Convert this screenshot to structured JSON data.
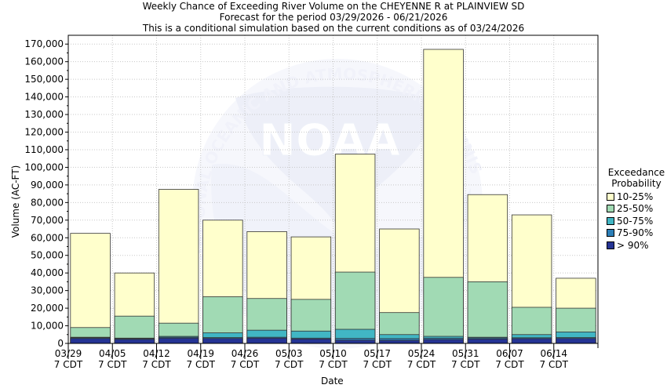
{
  "title": {
    "line1": "Weekly Chance of Exceeding River Volume on the CHEYENNE R at PLAINVIEW SD",
    "line2": "Forecast for the period 03/29/2026 - 06/21/2026",
    "line3": "This is a conditional simulation based on the current conditions as of 03/24/2026"
  },
  "watermark": {
    "logo_text": "NOAA",
    "ring_text": "NATIONAL OCEANIC AND ATMOSPHERIC ADMINISTRATION"
  },
  "legend": {
    "title_line1": "Exceedance",
    "title_line2": "Probability",
    "items": [
      {
        "label": "10-25%",
        "color": "#ffffcc"
      },
      {
        "label": "25-50%",
        "color": "#a1dab4"
      },
      {
        "label": "50-75%",
        "color": "#41b6c4"
      },
      {
        "label": "75-90%",
        "color": "#2c7fb8"
      },
      {
        "label": "> 90%",
        "color": "#253494"
      }
    ]
  },
  "chart_data": {
    "type": "bar",
    "stacked": true,
    "xlabel": "Date",
    "ylabel": "Volume (AC-FT)",
    "ylim": [
      0,
      175000
    ],
    "yticks": [
      0,
      10000,
      20000,
      30000,
      40000,
      50000,
      60000,
      70000,
      80000,
      90000,
      100000,
      110000,
      120000,
      130000,
      140000,
      150000,
      160000,
      170000
    ],
    "ytick_labels": [
      "0",
      "10,000",
      "20,000",
      "30,000",
      "40,000",
      "50,000",
      "60,000",
      "70,000",
      "80,000",
      "90,000",
      "100,000",
      "110,000",
      "120,000",
      "130,000",
      "140,000",
      "150,000",
      "160,000",
      "170,000"
    ],
    "xtick_labels": [
      {
        "date": "03/29",
        "tz": "7 CDT"
      },
      {
        "date": "04/05",
        "tz": "7 CDT"
      },
      {
        "date": "04/12",
        "tz": "7 CDT"
      },
      {
        "date": "04/19",
        "tz": "7 CDT"
      },
      {
        "date": "04/26",
        "tz": "7 CDT"
      },
      {
        "date": "05/03",
        "tz": "7 CDT"
      },
      {
        "date": "05/10",
        "tz": "7 CDT"
      },
      {
        "date": "05/17",
        "tz": "7 CDT"
      },
      {
        "date": "05/24",
        "tz": "7 CDT"
      },
      {
        "date": "05/31",
        "tz": "7 CDT"
      },
      {
        "date": "06/07",
        "tz": "7 CDT"
      },
      {
        "date": "06/14",
        "tz": "7 CDT"
      }
    ],
    "categories": [
      "03/29",
      "04/05",
      "04/12",
      "04/19",
      "04/26",
      "05/03",
      "05/10",
      "05/17",
      "05/24",
      "05/31",
      "06/07",
      "06/14"
    ],
    "exceedance_10_percent": [
      62500,
      40000,
      87500,
      70000,
      63500,
      60500,
      107500,
      65000,
      167000,
      84500,
      73000,
      37000
    ],
    "exceedance_25_percent": [
      9000,
      15500,
      11500,
      26500,
      25500,
      25000,
      40500,
      17500,
      37500,
      35000,
      20500,
      20000
    ],
    "exceedance_50_percent": [
      3500,
      3000,
      4000,
      6000,
      7500,
      7000,
      8000,
      5000,
      4000,
      3500,
      5000,
      6500
    ],
    "exceedance_75_percent": [
      3200,
      2700,
      3500,
      3300,
      3500,
      3000,
      2800,
      2700,
      3000,
      3100,
      3200,
      3300
    ],
    "exceedance_90_percent": [
      2800,
      2300,
      3000,
      2800,
      3000,
      2500,
      1800,
      1700,
      2200,
      2500,
      2700,
      2800
    ]
  }
}
